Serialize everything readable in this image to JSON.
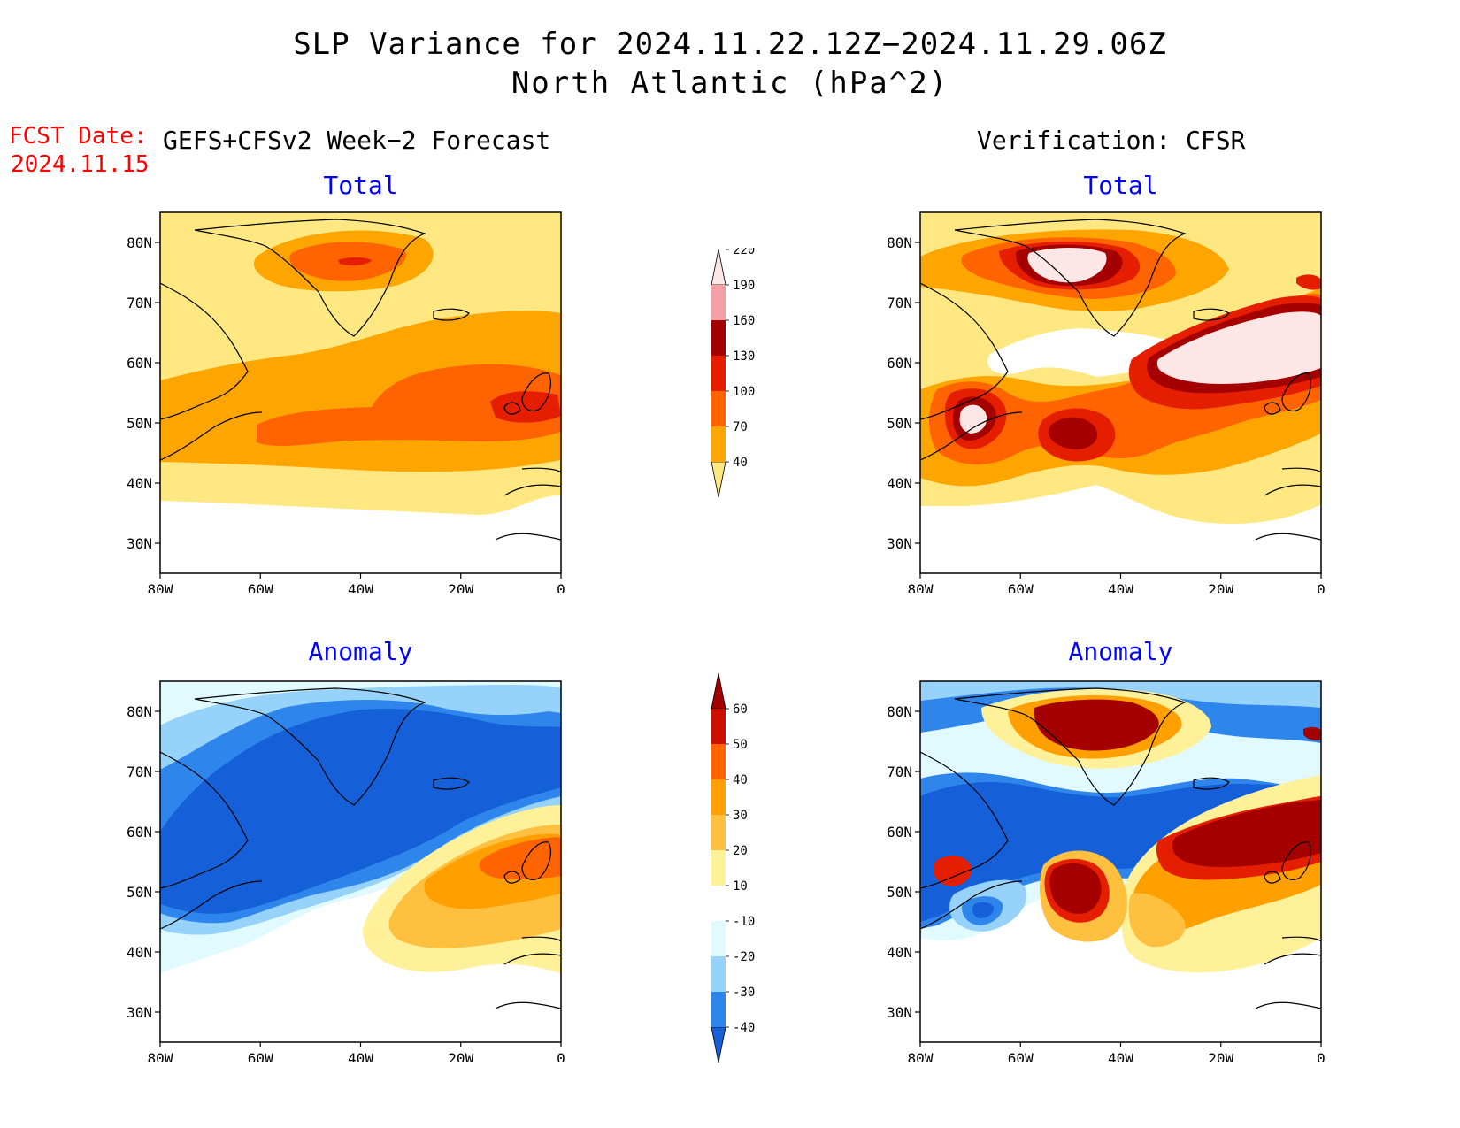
{
  "header": {
    "title_line1": "SLP Variance for 2024.11.22.12Z−2024.11.29.06Z",
    "title_line2": "North Atlantic (hPa^2)"
  },
  "fcst": {
    "label": "FCST Date:",
    "date": "2024.11.15"
  },
  "columns": {
    "left": "GEFS+CFSv2 Week−2 Forecast",
    "right": "Verification: CFSR"
  },
  "panels": {
    "forecast_total": {
      "title": "Total"
    },
    "verification_total": {
      "title": "Total"
    },
    "forecast_anomaly": {
      "title": "Anomaly"
    },
    "verification_anomaly": {
      "title": "Anomaly"
    }
  },
  "axes": {
    "lat_labels": [
      "80N",
      "70N",
      "60N",
      "50N",
      "40N",
      "30N"
    ],
    "lat_values": [
      80,
      70,
      60,
      50,
      40,
      30
    ],
    "lon_labels": [
      "80W",
      "60W",
      "40W",
      "20W",
      "0"
    ],
    "lon_values": [
      -80,
      -60,
      -40,
      -20,
      0
    ],
    "lat_range": [
      25,
      85
    ],
    "lon_range": [
      -80,
      0
    ]
  },
  "colorbars": {
    "total": {
      "levels": [
        "40",
        "70",
        "100",
        "130",
        "160",
        "190",
        "220"
      ],
      "colors": [
        "#ffe882",
        "#ffa500",
        "#ff6400",
        "#e61e00",
        "#a50000",
        "#f5a0a5",
        "#fde6e6"
      ]
    },
    "anomaly": {
      "levels": [
        "-40",
        "-30",
        "-20",
        "-10",
        "10",
        "20",
        "30",
        "40",
        "50",
        "60"
      ],
      "colors": [
        "#1560d8",
        "#2e85ec",
        "#96d2fa",
        "#e0faff",
        "#ffffff",
        "#fff09a",
        "#ffc040",
        "#ffa000",
        "#ff6400",
        "#cc1000",
        "#a50000"
      ]
    }
  }
}
